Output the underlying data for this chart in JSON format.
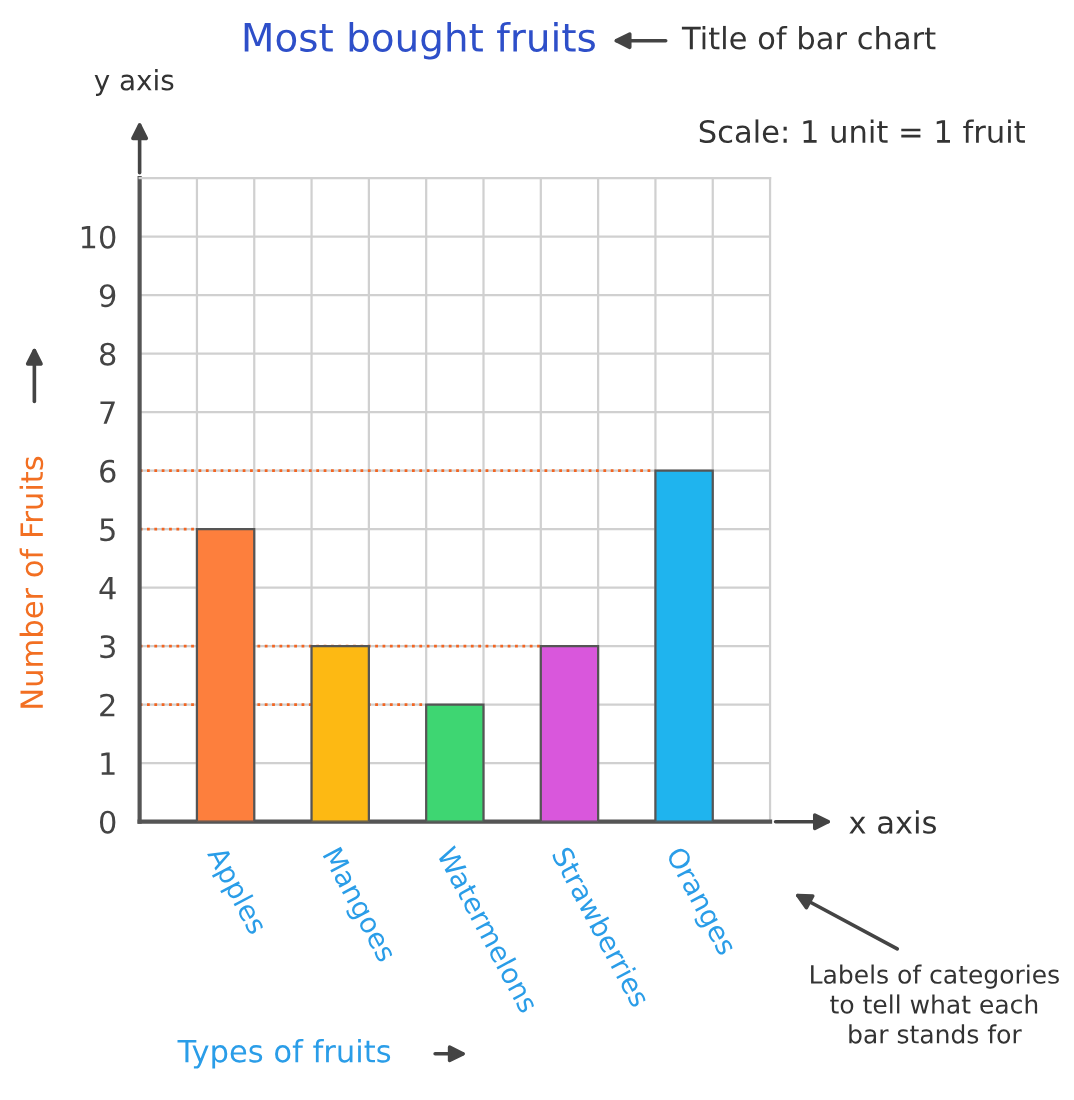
{
  "chart_data": {
    "type": "bar",
    "title": "Most bought fruits",
    "xlabel": "Types of fruits",
    "ylabel": "Number of Fruits",
    "categories": [
      "Apples",
      "Mangoes",
      "Watermelons",
      "Strawberries",
      "Oranges"
    ],
    "values": [
      5,
      3,
      2,
      3,
      6
    ],
    "colors": [
      "#fd7f3d",
      "#fdb913",
      "#3ed672",
      "#d957dc",
      "#1fb4ee"
    ],
    "ylim": [
      0,
      11
    ],
    "yticks": [
      0,
      1,
      2,
      3,
      4,
      5,
      6,
      7,
      8,
      9,
      10
    ],
    "grid": true,
    "ref_lines": [
      {
        "axis": "y",
        "value": 5,
        "color": "#f26522",
        "line_style": "dotted"
      },
      {
        "axis": "y",
        "value": 3,
        "color": "#f26522",
        "line_style": "dotted"
      },
      {
        "axis": "y",
        "value": 2,
        "color": "#f26522",
        "line_style": "dotted"
      },
      {
        "axis": "y",
        "value": 6,
        "color": "#f26522",
        "line_style": "dotted"
      }
    ],
    "annotations": [
      "Title of bar chart",
      "Scale: 1 unit = 1 fruit",
      "y axis",
      "x axis",
      "Labels of categories\nto tell what each\nbar stands for"
    ]
  }
}
